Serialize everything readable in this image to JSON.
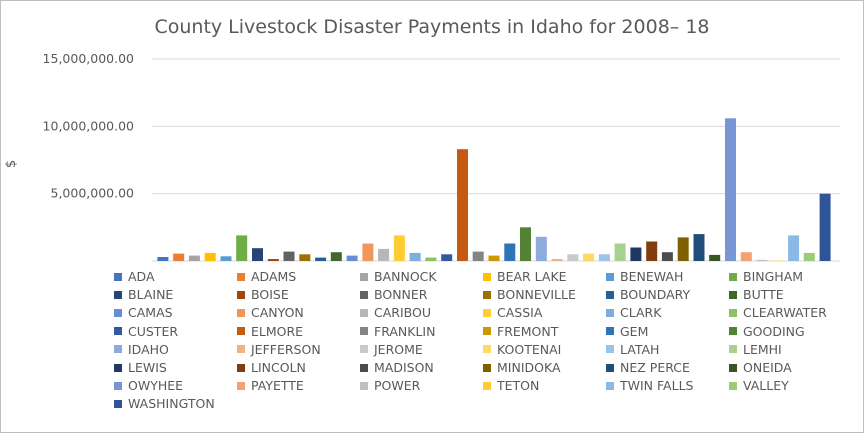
{
  "chart_data": {
    "type": "bar",
    "title": "County Livestock Disaster Payments in Idaho for 2008– 18",
    "ylabel": "$",
    "xlabel": "",
    "ylim": [
      0,
      15000000
    ],
    "yticks": [
      {
        "value": 0,
        "label": ""
      },
      {
        "value": 5000000,
        "label": "5,000,000.00"
      },
      {
        "value": 10000000,
        "label": "10,000,000.00"
      },
      {
        "value": 15000000,
        "label": "15,000,000.00"
      }
    ],
    "grid": true,
    "legend_position": "bottom",
    "series": [
      {
        "name": "ADA",
        "value": 300000,
        "color": "#4472C4"
      },
      {
        "name": "ADAMS",
        "value": 550000,
        "color": "#ED7D31"
      },
      {
        "name": "BANNOCK",
        "value": 400000,
        "color": "#A5A5A5"
      },
      {
        "name": "BEAR LAKE",
        "value": 600000,
        "color": "#FFC000"
      },
      {
        "name": "BENEWAH",
        "value": 350000,
        "color": "#5B9BD5"
      },
      {
        "name": "BINGHAM",
        "value": 1900000,
        "color": "#70AD47"
      },
      {
        "name": "BLAINE",
        "value": 950000,
        "color": "#264478"
      },
      {
        "name": "BOISE",
        "value": 150000,
        "color": "#9E480E"
      },
      {
        "name": "BONNER",
        "value": 700000,
        "color": "#636363"
      },
      {
        "name": "BONNEVILLE",
        "value": 500000,
        "color": "#997300"
      },
      {
        "name": "BOUNDARY",
        "value": 250000,
        "color": "#255E91"
      },
      {
        "name": "BUTTE",
        "value": 650000,
        "color": "#43682B"
      },
      {
        "name": "CAMAS",
        "value": 400000,
        "color": "#698ED0"
      },
      {
        "name": "CANYON",
        "value": 1300000,
        "color": "#F1975A"
      },
      {
        "name": "CARIBOU",
        "value": 900000,
        "color": "#B7B7B7"
      },
      {
        "name": "CASSIA",
        "value": 1900000,
        "color": "#FFCD33"
      },
      {
        "name": "CLARK",
        "value": 600000,
        "color": "#7CAFDD"
      },
      {
        "name": "CLEARWATER",
        "value": 250000,
        "color": "#8CC168"
      },
      {
        "name": "CUSTER",
        "value": 500000,
        "color": "#335AA1"
      },
      {
        "name": "ELMORE",
        "value": 8300000,
        "color": "#C55A11"
      },
      {
        "name": "FRANKLIN",
        "value": 700000,
        "color": "#848484"
      },
      {
        "name": "FREMONT",
        "value": 400000,
        "color": "#CC9A00"
      },
      {
        "name": "GEM",
        "value": 1300000,
        "color": "#2E75B6"
      },
      {
        "name": "GOODING",
        "value": 2500000,
        "color": "#548235"
      },
      {
        "name": "IDAHO",
        "value": 1800000,
        "color": "#8FAADC"
      },
      {
        "name": "JEFFERSON",
        "value": 150000,
        "color": "#F4B183"
      },
      {
        "name": "JEROME",
        "value": 500000,
        "color": "#C9C9C9"
      },
      {
        "name": "KOOTENAI",
        "value": 550000,
        "color": "#FFD966"
      },
      {
        "name": "LATAH",
        "value": 500000,
        "color": "#9DC3E6"
      },
      {
        "name": "LEMHI",
        "value": 1300000,
        "color": "#A9D18E"
      },
      {
        "name": "LEWIS",
        "value": 1000000,
        "color": "#203864"
      },
      {
        "name": "LINCOLN",
        "value": 1450000,
        "color": "#843C0C"
      },
      {
        "name": "MADISON",
        "value": 650000,
        "color": "#4D4D4D"
      },
      {
        "name": "MINIDOKA",
        "value": 1750000,
        "color": "#7F6000"
      },
      {
        "name": "NEZ PERCE",
        "value": 2000000,
        "color": "#1F4E79"
      },
      {
        "name": "ONEIDA",
        "value": 450000,
        "color": "#375623"
      },
      {
        "name": "OWYHEE",
        "value": 10600000,
        "color": "#7896D4"
      },
      {
        "name": "PAYETTE",
        "value": 650000,
        "color": "#F4A26F"
      },
      {
        "name": "POWER",
        "value": 80000,
        "color": "#BFBFBF"
      },
      {
        "name": "TETON",
        "value": 30000,
        "color": "#FFCC33"
      },
      {
        "name": "TWIN FALLS",
        "value": 1900000,
        "color": "#8AB9E6"
      },
      {
        "name": "VALLEY",
        "value": 600000,
        "color": "#9BCB7A"
      },
      {
        "name": "WASHINGTON",
        "value": 5000000,
        "color": "#2F5597"
      }
    ]
  }
}
